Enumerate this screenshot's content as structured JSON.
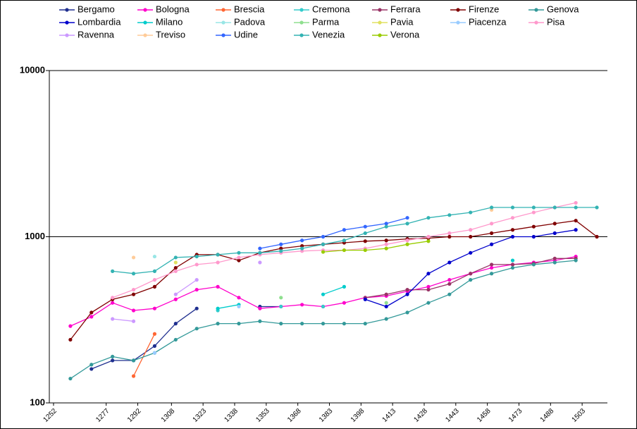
{
  "chart_data": {
    "type": "line",
    "y_scale": "log",
    "grid": true,
    "x": [
      1250,
      1260,
      1270,
      1280,
      1290,
      1300,
      1310,
      1320,
      1330,
      1340,
      1350,
      1360,
      1370,
      1380,
      1390,
      1400,
      1410,
      1420,
      1430,
      1440,
      1450,
      1460,
      1470,
      1480,
      1490,
      1500,
      1510
    ],
    "xlim": [
      1250,
      1515
    ],
    "xticks": [
      1252,
      1277,
      1292,
      1308,
      1323,
      1338,
      1353,
      1368,
      1383,
      1398,
      1413,
      1428,
      1443,
      1458,
      1473,
      1488,
      1503
    ],
    "ylim": [
      100,
      10000
    ],
    "yticks": [
      100,
      1000,
      10000
    ],
    "series": [
      {
        "name": "Bergamo",
        "color": "#1f2f8f",
        "values": [
          null,
          null,
          160,
          180,
          180,
          220,
          300,
          370,
          null,
          null,
          380,
          380,
          null,
          380,
          null,
          null,
          null,
          null,
          null,
          null,
          null,
          null,
          null,
          null,
          null,
          null,
          null
        ]
      },
      {
        "name": "Bologna",
        "color": "#ff00cc",
        "values": [
          null,
          290,
          330,
          400,
          360,
          370,
          420,
          480,
          500,
          430,
          370,
          380,
          390,
          380,
          400,
          430,
          440,
          470,
          500,
          550,
          600,
          650,
          680,
          700,
          720,
          760,
          null
        ]
      },
      {
        "name": "Brescia",
        "color": "#ff6633",
        "values": [
          null,
          null,
          null,
          null,
          145,
          260,
          null,
          null,
          null,
          null,
          null,
          null,
          null,
          null,
          null,
          null,
          null,
          null,
          null,
          null,
          null,
          null,
          null,
          null,
          null,
          null,
          null
        ]
      },
      {
        "name": "Cremona",
        "color": "#33cccc",
        "values": [
          null,
          null,
          null,
          null,
          null,
          null,
          null,
          null,
          360,
          null,
          null,
          380,
          null,
          380,
          null,
          null,
          null,
          null,
          null,
          null,
          null,
          null,
          null,
          null,
          null,
          null,
          null
        ]
      },
      {
        "name": "Ferrara",
        "color": "#993366",
        "values": [
          null,
          null,
          null,
          null,
          null,
          null,
          null,
          null,
          null,
          null,
          null,
          null,
          null,
          null,
          null,
          430,
          450,
          480,
          480,
          520,
          600,
          680,
          680,
          690,
          740,
          740,
          null
        ]
      },
      {
        "name": "Firenze",
        "color": "#800000",
        "values": [
          null,
          240,
          350,
          420,
          450,
          500,
          650,
          780,
          780,
          720,
          800,
          850,
          880,
          900,
          920,
          940,
          950,
          970,
          980,
          1000,
          1000,
          1050,
          1100,
          1150,
          1200,
          1250,
          1000
        ]
      },
      {
        "name": "Genova",
        "color": "#339999",
        "values": [
          null,
          140,
          170,
          190,
          180,
          200,
          240,
          280,
          300,
          300,
          310,
          300,
          300,
          300,
          300,
          300,
          320,
          350,
          400,
          450,
          550,
          600,
          650,
          680,
          700,
          720,
          null
        ]
      },
      {
        "name": "Lombardia",
        "color": "#0000cc",
        "values": [
          null,
          null,
          null,
          null,
          null,
          null,
          null,
          null,
          null,
          null,
          null,
          null,
          null,
          null,
          null,
          420,
          380,
          450,
          600,
          700,
          800,
          900,
          1000,
          1000,
          1050,
          1100,
          null
        ]
      },
      {
        "name": "Milano",
        "color": "#00cccc",
        "values": [
          null,
          null,
          null,
          null,
          null,
          null,
          null,
          null,
          370,
          390,
          null,
          null,
          null,
          450,
          500,
          null,
          null,
          null,
          null,
          null,
          null,
          null,
          720,
          null,
          null,
          null,
          null
        ]
      },
      {
        "name": "Padova",
        "color": "#99e6e6",
        "values": [
          null,
          null,
          null,
          null,
          null,
          760,
          null,
          null,
          null,
          null,
          null,
          null,
          null,
          1000,
          null,
          null,
          null,
          null,
          null,
          null,
          null,
          null,
          null,
          null,
          null,
          null,
          null
        ]
      },
      {
        "name": "Parma",
        "color": "#8fdf8f",
        "values": [
          null,
          null,
          null,
          null,
          null,
          null,
          null,
          null,
          null,
          null,
          null,
          430,
          null,
          null,
          null,
          null,
          400,
          null,
          null,
          null,
          null,
          null,
          null,
          null,
          null,
          null,
          null
        ]
      },
      {
        "name": "Pavia",
        "color": "#e0e060",
        "values": [
          null,
          null,
          null,
          null,
          null,
          null,
          700,
          null,
          null,
          null,
          null,
          null,
          null,
          null,
          null,
          null,
          null,
          null,
          null,
          null,
          null,
          null,
          null,
          null,
          null,
          null,
          null
        ]
      },
      {
        "name": "Piacenza",
        "color": "#99ccff",
        "values": [
          null,
          null,
          null,
          null,
          null,
          200,
          null,
          null,
          null,
          380,
          null,
          null,
          null,
          null,
          null,
          null,
          null,
          null,
          null,
          null,
          null,
          null,
          null,
          null,
          null,
          null,
          null
        ]
      },
      {
        "name": "Pisa",
        "color": "#ff99cc",
        "values": [
          null,
          null,
          null,
          430,
          480,
          550,
          620,
          680,
          700,
          750,
          780,
          800,
          820,
          830,
          830,
          850,
          900,
          950,
          1000,
          1050,
          1100,
          1200,
          1300,
          1400,
          1500,
          1600,
          null
        ]
      },
      {
        "name": "Ravenna",
        "color": "#cc99ff",
        "values": [
          null,
          null,
          null,
          320,
          310,
          null,
          450,
          550,
          null,
          null,
          700,
          null,
          null,
          null,
          null,
          null,
          null,
          null,
          null,
          null,
          null,
          null,
          null,
          null,
          null,
          null,
          null
        ]
      },
      {
        "name": "Treviso",
        "color": "#ffcc99",
        "values": [
          null,
          null,
          null,
          null,
          750,
          null,
          null,
          null,
          null,
          null,
          null,
          null,
          null,
          null,
          null,
          null,
          null,
          null,
          null,
          null,
          null,
          1450,
          null,
          null,
          null,
          null,
          null
        ]
      },
      {
        "name": "Udine",
        "color": "#3366ff",
        "values": [
          null,
          null,
          null,
          null,
          null,
          null,
          null,
          null,
          null,
          null,
          850,
          900,
          950,
          1000,
          1100,
          1150,
          1200,
          1300,
          null,
          null,
          null,
          null,
          null,
          null,
          null,
          null,
          null
        ]
      },
      {
        "name": "Venezia",
        "color": "#33b3b3",
        "values": [
          null,
          null,
          null,
          620,
          600,
          620,
          750,
          760,
          780,
          800,
          800,
          820,
          850,
          900,
          950,
          1050,
          1150,
          1200,
          1300,
          1350,
          1400,
          1500,
          1500,
          1500,
          1500,
          1500,
          1500
        ]
      },
      {
        "name": "Verona",
        "color": "#99cc00",
        "values": [
          null,
          null,
          null,
          null,
          null,
          null,
          null,
          null,
          null,
          null,
          null,
          null,
          null,
          810,
          830,
          830,
          850,
          900,
          940,
          null,
          null,
          null,
          null,
          null,
          null,
          null,
          null
        ]
      }
    ]
  }
}
